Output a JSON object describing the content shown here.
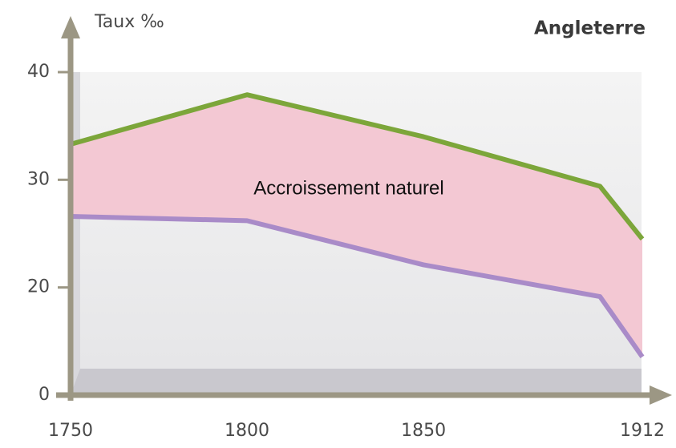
{
  "chart_data": {
    "type": "line",
    "title": "Angleterre",
    "y_label": "Taux ‰",
    "annotation": "Accroissement naturel",
    "x": [
      1750,
      1800,
      1850,
      1900,
      1912
    ],
    "series": [
      {
        "name": null,
        "color": "#7ca63a",
        "values": [
          33.3,
          37.9,
          34,
          29.4,
          24.5
        ]
      },
      {
        "name": null,
        "color": "#a98bc8",
        "values": [
          26.6,
          26.2,
          22.1,
          18.3,
          7.1
        ]
      }
    ],
    "fill_between_color": "#f3c8d3",
    "xlim": [
      1750,
      1912
    ],
    "xticks": [
      1750,
      1800,
      1850,
      1912
    ],
    "ylim": [
      0,
      40
    ],
    "yticks": [
      0,
      20,
      30,
      40
    ]
  }
}
